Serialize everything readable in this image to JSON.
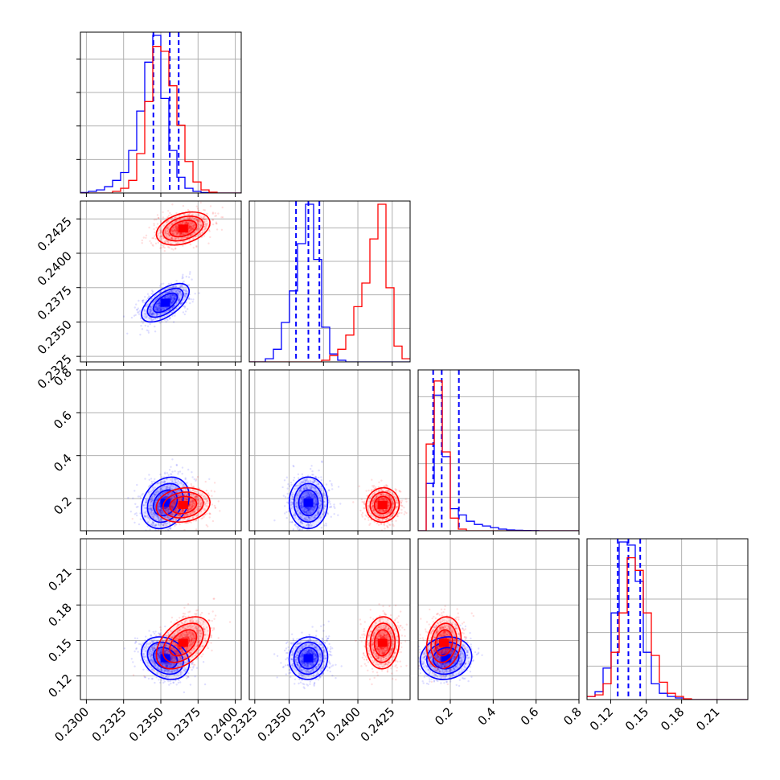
{
  "chart_data": {
    "type": "corner",
    "params": [
      {
        "name": "",
        "range": [
          0.2296,
          0.2404
        ],
        "ticks": [
          0.23,
          0.2325,
          0.235,
          0.2375,
          0.24
        ],
        "tick_labels": [
          "0.2300",
          "0.2325",
          "0.2350",
          "0.2375",
          "0.2400"
        ]
      },
      {
        "name": "",
        "range": [
          0.2321,
          0.2438
        ],
        "ticks": [
          0.2325,
          0.235,
          0.2375,
          0.24,
          0.2425
        ],
        "tick_labels": [
          "0.2325",
          "0.2350",
          "0.2375",
          "0.2400",
          "0.2425"
        ]
      },
      {
        "name": "",
        "range": [
          0.05,
          0.8
        ],
        "ticks": [
          0.2,
          0.4,
          0.6,
          0.8
        ],
        "tick_labels": [
          "0.2",
          "0.4",
          "0.6",
          "0.8"
        ]
      },
      {
        "name": "",
        "range": [
          0.1,
          0.236
        ],
        "ticks": [
          0.12,
          0.15,
          0.18,
          0.21
        ],
        "tick_labels": [
          "0.12",
          "0.15",
          "0.18",
          "0.21"
        ]
      }
    ],
    "series": [
      {
        "color": "#0000ff",
        "mean": [
          0.2353,
          0.2364,
          0.18,
          0.135
        ],
        "std": [
          0.0008,
          0.0007,
          0.06,
          0.009
        ],
        "corr": [
          [
            0,
            1,
            0.6
          ],
          [
            0,
            2,
            0.25
          ],
          [
            0,
            3,
            -0.25
          ],
          [
            1,
            2,
            0.0
          ],
          [
            1,
            3,
            0.05
          ],
          [
            2,
            3,
            0.1
          ]
        ],
        "quantiles": [
          [
            0.2345,
            0.2356,
            0.2362
          ],
          [
            0.2355,
            0.2364,
            0.2372
          ],
          [
            0.12,
            0.16,
            0.24
          ],
          [
            0.126,
            0.135,
            0.145
          ]
        ],
        "hist": [
          [
            0.003,
            0.01,
            0.02,
            0.04,
            0.08,
            0.13,
            0.27,
            0.52,
            0.83,
            1.0,
            0.6,
            0.27,
            0.1,
            0.03,
            0.01,
            0.003,
            0,
            0,
            0,
            0
          ],
          [
            0,
            0,
            0.02,
            0.08,
            0.25,
            0.45,
            0.75,
            1.0,
            0.65,
            0.22,
            0.05,
            0.01,
            0,
            0,
            0,
            0,
            0,
            0,
            0,
            0
          ],
          [
            0,
            0.3,
            0.86,
            0.47,
            0.14,
            0.1,
            0.06,
            0.04,
            0.03,
            0.02,
            0.01,
            0.005,
            0.003,
            0.002,
            0.001,
            0,
            0,
            0,
            0,
            0
          ],
          [
            0.02,
            0.05,
            0.2,
            0.55,
            1.0,
            0.98,
            0.75,
            0.3,
            0.1,
            0.04,
            0.02,
            0.01,
            0,
            0,
            0,
            0,
            0,
            0,
            0,
            0
          ]
        ]
      },
      {
        "color": "#ff0000",
        "mean": [
          0.2365,
          0.2418,
          0.17,
          0.148
        ],
        "std": [
          0.0009,
          0.0006,
          0.04,
          0.011
        ],
        "corr": [
          [
            0,
            1,
            0.35
          ],
          [
            0,
            2,
            0.15
          ],
          [
            0,
            3,
            0.45
          ],
          [
            1,
            2,
            0.05
          ],
          [
            1,
            3,
            0.05
          ],
          [
            2,
            3,
            0.15
          ]
        ],
        "quantiles": [],
        "hist": [
          [
            0,
            0,
            0,
            0,
            0.01,
            0.03,
            0.08,
            0.25,
            0.58,
            0.93,
            0.9,
            0.68,
            0.43,
            0.2,
            0.07,
            0.02,
            0.005,
            0,
            0,
            0
          ],
          [
            0,
            0,
            0,
            0,
            0,
            0,
            0,
            0,
            0,
            0.01,
            0.04,
            0.08,
            0.17,
            0.35,
            0.5,
            0.78,
            1.0,
            0.47,
            0.1,
            0.02
          ],
          [
            0,
            0.55,
            0.95,
            0.5,
            0.08,
            0.01,
            0,
            0,
            0,
            0,
            0,
            0,
            0,
            0,
            0,
            0,
            0,
            0,
            0,
            0
          ],
          [
            0.02,
            0.03,
            0.1,
            0.3,
            0.55,
            0.9,
            0.82,
            0.55,
            0.28,
            0.11,
            0.04,
            0.02,
            0.005,
            0,
            0,
            0,
            0,
            0,
            0,
            0
          ]
        ]
      }
    ],
    "grid": true
  }
}
